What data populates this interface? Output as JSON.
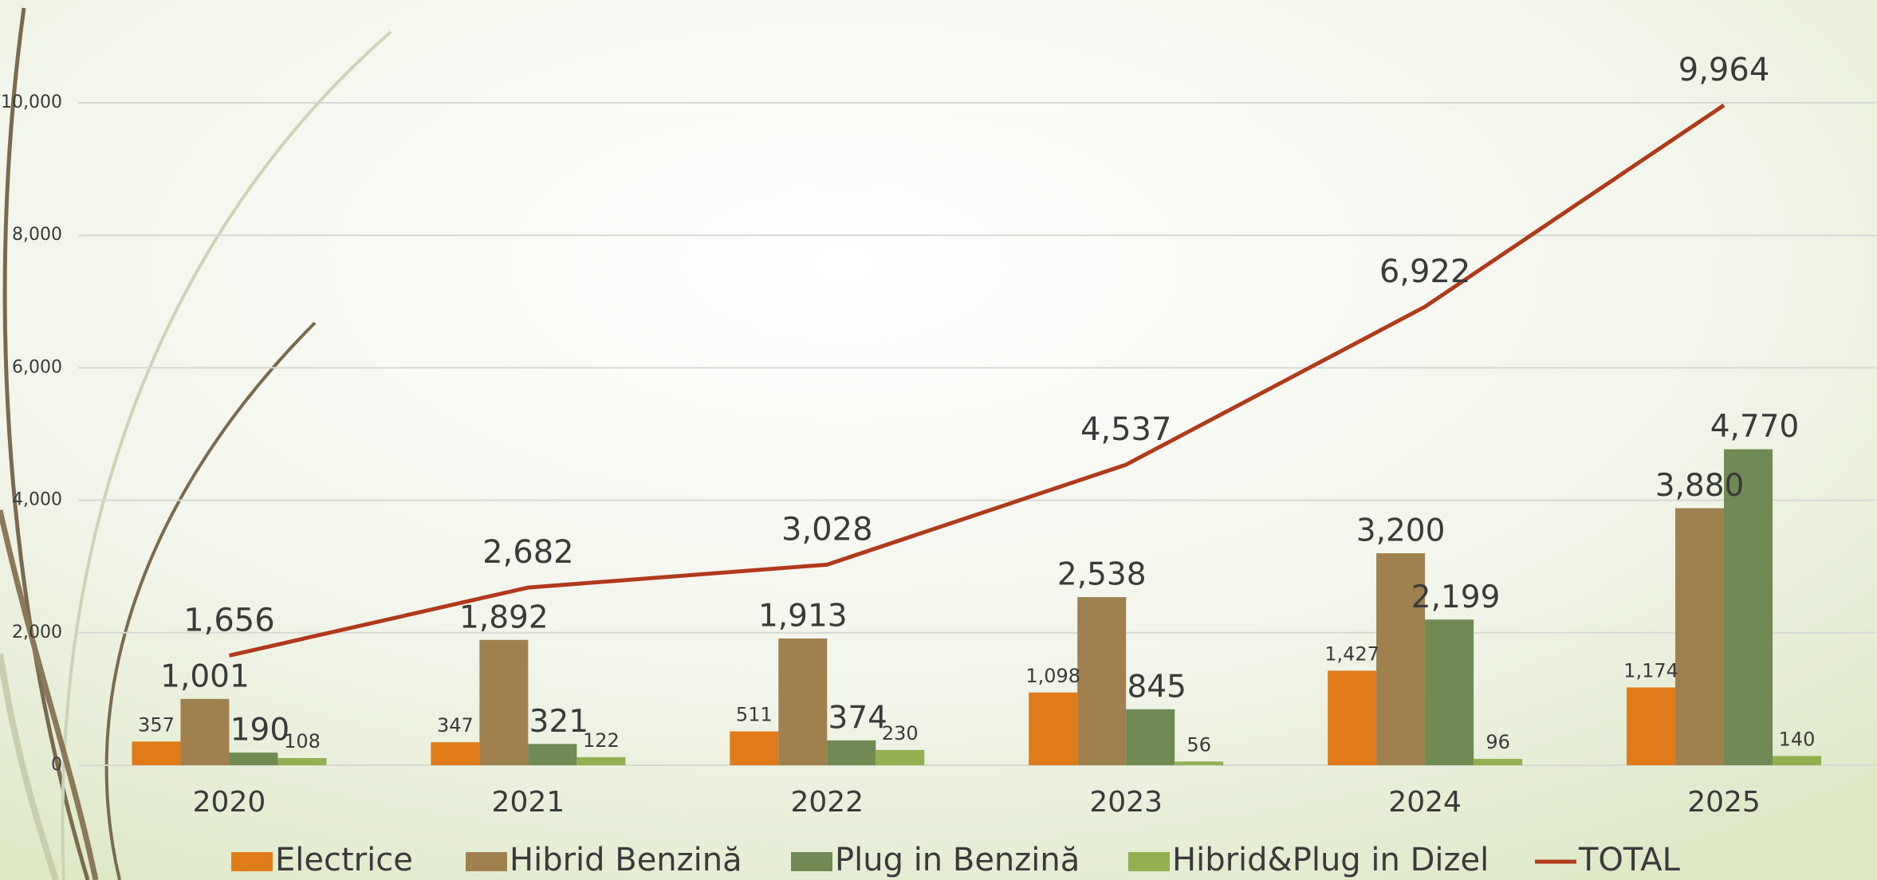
{
  "chart_data": {
    "type": "bar",
    "categories": [
      "2020",
      "2021",
      "2022",
      "2023",
      "2024",
      "2025"
    ],
    "series": [
      {
        "name": "Electrice",
        "color": "#e07b1a",
        "values": [
          357,
          347,
          511,
          1098,
          1427,
          1174
        ],
        "value_labels": [
          "357",
          "347",
          "511",
          "1,098",
          "1,427",
          "1,174"
        ]
      },
      {
        "name": "Hibrid Benzină",
        "color": "#a0804f",
        "values": [
          1001,
          1892,
          1913,
          2538,
          3200,
          3880
        ],
        "value_labels": [
          "1,001",
          "1,892",
          "1,913",
          "2,538",
          "3,200",
          "3,880"
        ]
      },
      {
        "name": "Plug in Benzină",
        "color": "#6f8a52",
        "values": [
          190,
          321,
          374,
          845,
          2199,
          4770
        ],
        "value_labels": [
          "190",
          "321",
          "374",
          "845",
          "2,199",
          "4,770"
        ]
      },
      {
        "name": "Hibrid&Plug in Dizel",
        "color": "#93b050",
        "values": [
          108,
          122,
          230,
          56,
          96,
          140
        ],
        "value_labels": [
          "108",
          "122",
          "230",
          "56",
          "96",
          "140"
        ]
      },
      {
        "name": "TOTAL",
        "type": "line",
        "color": "#b03a1a",
        "values": [
          1656,
          2682,
          3028,
          4537,
          6922,
          9964
        ],
        "value_labels": [
          "1,656",
          "2,682",
          "3,028",
          "4,537",
          "6,922",
          "9,964"
        ]
      }
    ],
    "ylim": [
      0,
      10000
    ],
    "yticks": [
      0,
      {
        "value": 2000,
        "label": "2,000"
      },
      {
        "value": 4000,
        "label": "4,000"
      },
      {
        "value": 6000,
        "label": "6,000"
      },
      {
        "value": 8000,
        "label": "8,000"
      },
      {
        "value": 10000,
        "label": "10,000"
      }
    ],
    "grid": true,
    "legend": "bottom"
  }
}
